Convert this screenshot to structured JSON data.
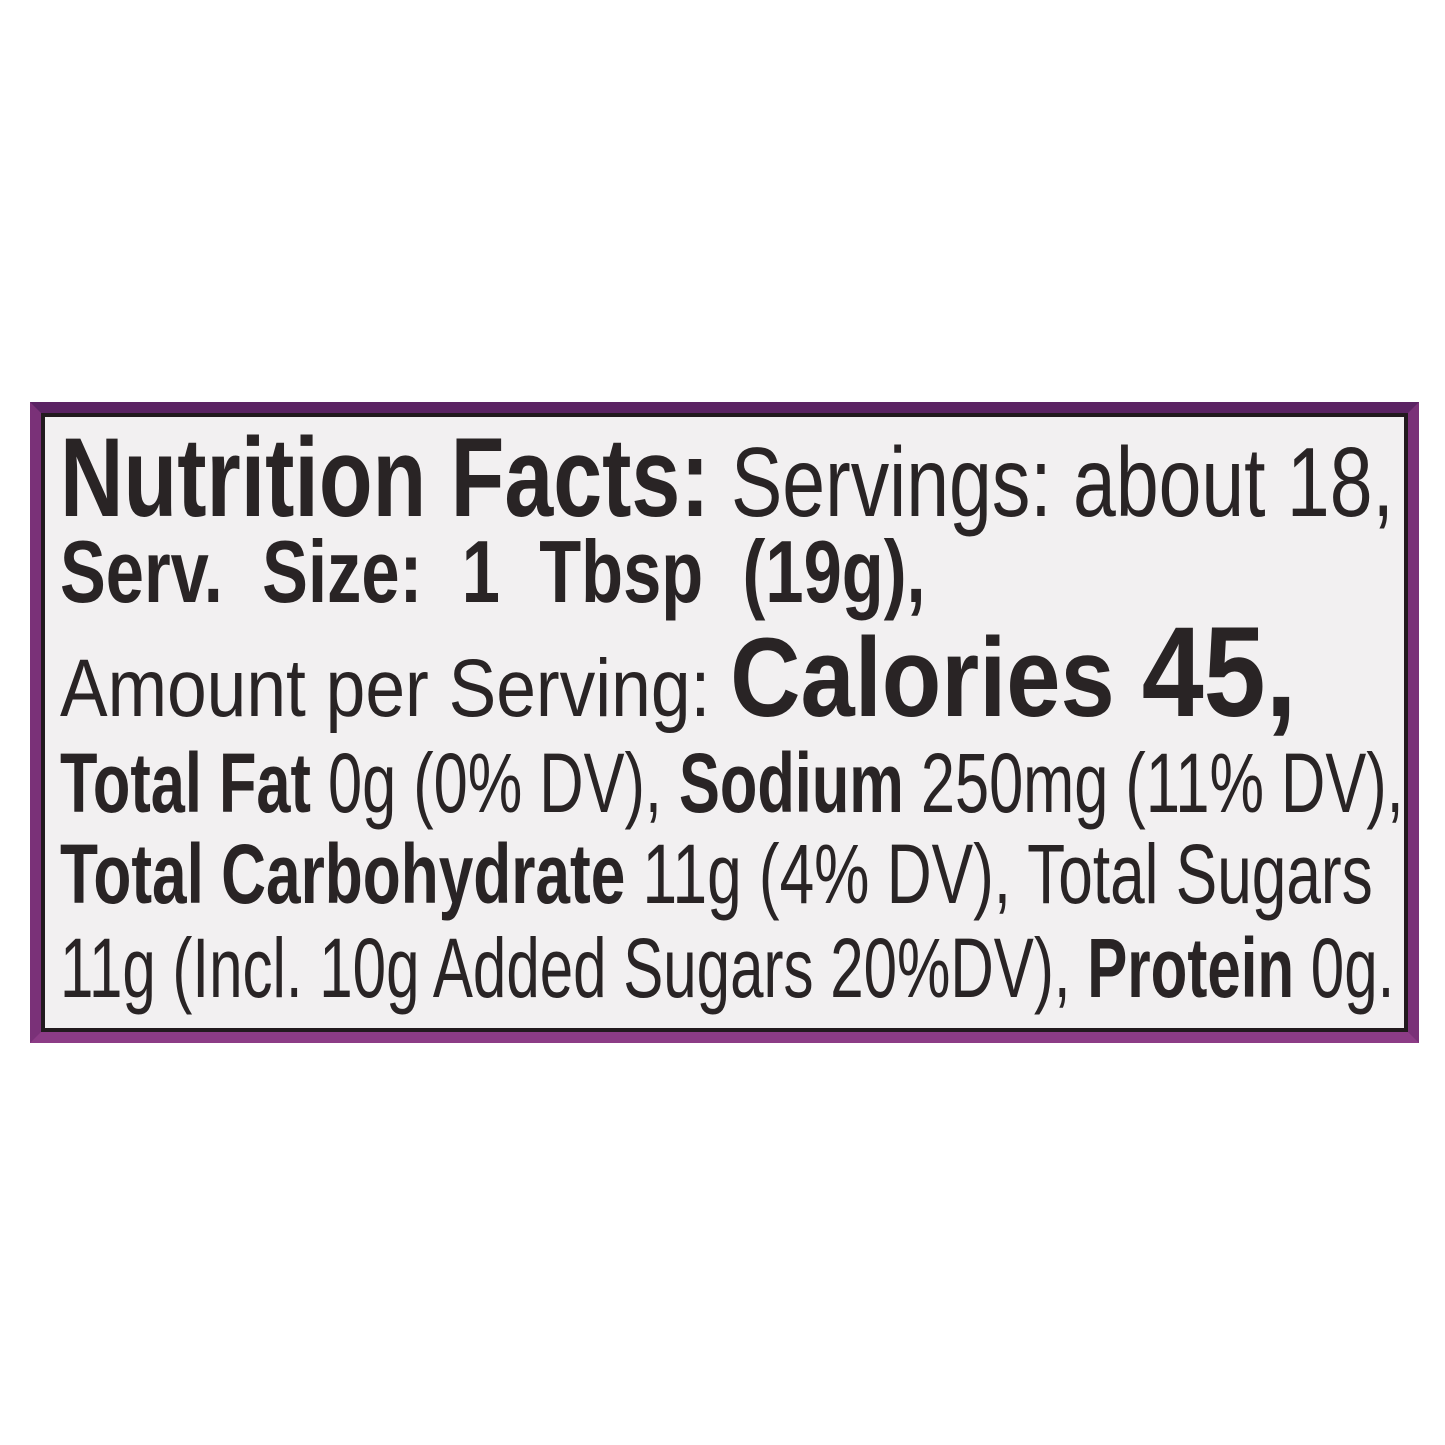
{
  "page": {
    "background_color": "#ffffff"
  },
  "label": {
    "outer_border_color": "#7a3178",
    "inner_border_color": "#221a1e",
    "background_color": "#f2f0f1",
    "text_color": "#292425",
    "lines": [
      {
        "segments": [
          {
            "text": "Nutrition Facts:",
            "bold": true,
            "size": 112
          },
          {
            "text": " Servings: about 18,",
            "bold": false,
            "size": 98
          }
        ]
      },
      {
        "segments": [
          {
            "text": "Serv. Size: 1 Tbsp (19g),",
            "bold": true,
            "size": 88
          }
        ]
      },
      {
        "segments": [
          {
            "text": "Amount per Serving: ",
            "bold": false,
            "size": 82
          },
          {
            "text": "Calories ",
            "bold": true,
            "size": 112
          },
          {
            "text": "45,",
            "bold": true,
            "size": 128
          }
        ]
      },
      {
        "segments": [
          {
            "text": "Total Fat",
            "bold": true,
            "size": 84
          },
          {
            "text": " 0g (0% DV), ",
            "bold": false,
            "size": 84
          },
          {
            "text": "Sodium",
            "bold": true,
            "size": 84
          },
          {
            "text": " 250mg (11% DV),",
            "bold": false,
            "size": 84
          }
        ]
      },
      {
        "segments": [
          {
            "text": "Total Carbohydrate",
            "bold": true,
            "size": 84
          },
          {
            "text": " 11g (4% DV), Total Sugars",
            "bold": false,
            "size": 84
          }
        ]
      },
      {
        "segments": [
          {
            "text": "11g (Incl. 10g Added Sugars 20%DV), ",
            "bold": false,
            "size": 84
          },
          {
            "text": "Protein",
            "bold": true,
            "size": 84
          },
          {
            "text": " 0g.",
            "bold": false,
            "size": 84
          }
        ]
      }
    ],
    "facts": {
      "servings": "about 18",
      "serving_size": "1 Tbsp (19g)",
      "calories": "45",
      "total_fat": "0g (0% DV)",
      "sodium": "250mg (11% DV)",
      "total_carbohydrate": "11g (4% DV)",
      "total_sugars": "11g",
      "added_sugars": "10g (20%DV)",
      "protein": "0g"
    }
  }
}
